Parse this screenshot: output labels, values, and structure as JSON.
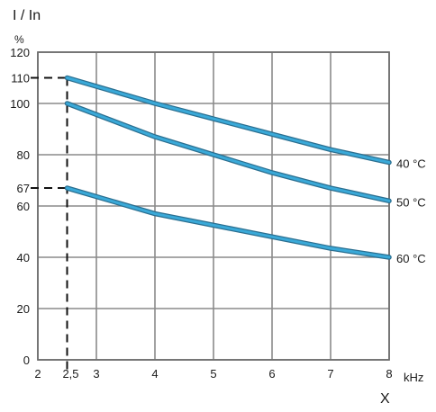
{
  "chart_data": {
    "type": "line",
    "ylabel": "I / In",
    "yunit": "%",
    "xlabel": "X",
    "xunit": "kHz",
    "xlim": [
      2,
      8
    ],
    "ylim": [
      0,
      120
    ],
    "xticks": [
      2,
      3,
      4,
      5,
      6,
      7,
      8
    ],
    "yticks": [
      0,
      20,
      40,
      60,
      80,
      100,
      120
    ],
    "extra_xtick": {
      "value": 2.5,
      "label": "2,5"
    },
    "extra_yticks": [
      110,
      67
    ],
    "xtick_labels": [
      "2",
      "3",
      "4",
      "5",
      "6",
      "7",
      "8"
    ],
    "ytick_labels": [
      "0",
      "20",
      "40",
      "60",
      "80",
      "100",
      "120"
    ],
    "extra_ytick_labels": [
      "110",
      "67"
    ],
    "grid": true,
    "line_color": "#3aa9d8",
    "series": [
      {
        "name": "40 °C",
        "x": [
          2.5,
          4,
          5,
          6,
          7,
          8
        ],
        "y": [
          110,
          100,
          94,
          88,
          82,
          77
        ]
      },
      {
        "name": "50 °C",
        "x": [
          2.5,
          4,
          5,
          6,
          7,
          8
        ],
        "y": [
          100,
          87,
          80,
          73,
          67,
          62
        ]
      },
      {
        "name": "60 °C",
        "x": [
          2.5,
          4,
          5,
          6,
          7,
          8
        ],
        "y": [
          67,
          57,
          52.5,
          48,
          43.5,
          40
        ]
      }
    ]
  }
}
